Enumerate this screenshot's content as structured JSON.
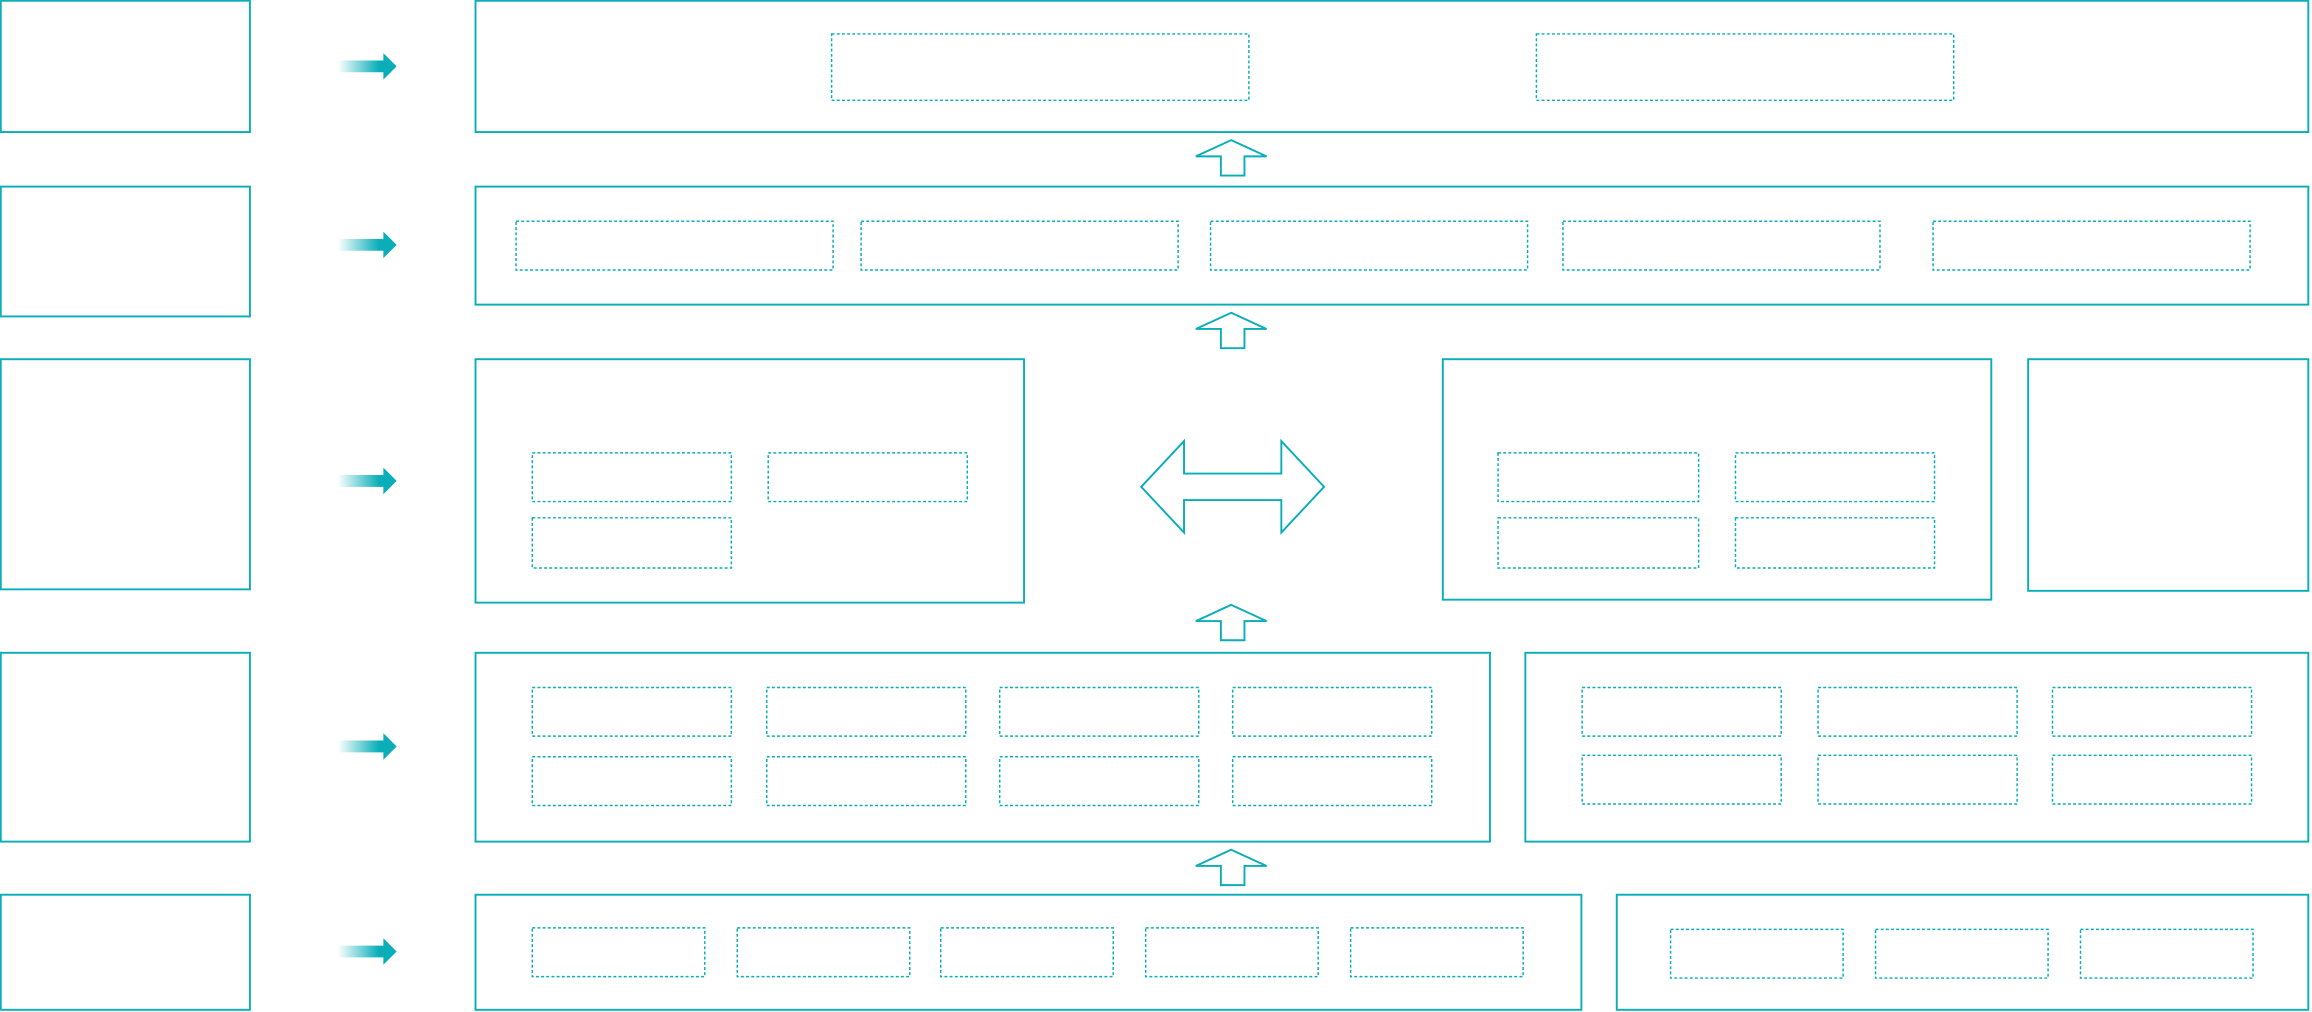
{
  "colors": {
    "stroke": "#0aaeb8",
    "arrow_fill": "#0aaeb8",
    "background": "#ffffff"
  },
  "icons": {
    "layer_arrow": "right-arrow-icon",
    "flow_arrow": "up-arrow-icon",
    "exchange_arrow": "double-arrow-icon"
  }
}
